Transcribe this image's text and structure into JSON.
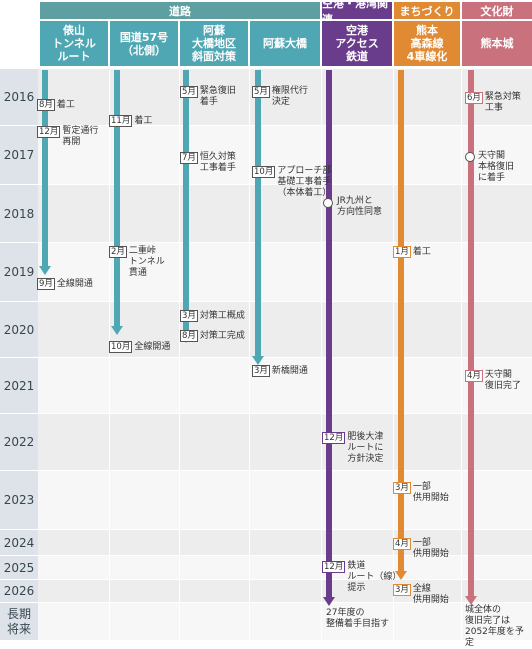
{
  "categories": [
    {
      "label": "道路"
    },
    {
      "label": "空港・港湾関連"
    },
    {
      "label": "まちづくり"
    },
    {
      "label": "文化財"
    }
  ],
  "columns": [
    {
      "lines": [
        "俵山",
        "トンネル",
        "ルート"
      ]
    },
    {
      "lines": [
        "国道57号",
        "（北側）"
      ]
    },
    {
      "lines": [
        "阿蘇",
        "大橋地区",
        "斜面対策"
      ]
    },
    {
      "lines": [
        "阿蘇大橋"
      ]
    },
    {
      "lines": [
        "空港",
        "アクセス",
        "鉄道"
      ]
    },
    {
      "lines": [
        "熊本",
        "高森線",
        "4車線化"
      ]
    },
    {
      "lines": [
        "熊本城"
      ]
    }
  ],
  "years": [
    "2016",
    "2017",
    "2018",
    "2019",
    "2020",
    "2021",
    "2022",
    "2023",
    "2024",
    "2025",
    "2026"
  ],
  "long_term_label": [
    "長期",
    "将来"
  ],
  "colors": {
    "road_cat": "#5e9fa2",
    "road_col": "#4fa7b3",
    "airport": "#6a3c8c",
    "town": "#e08a33",
    "culture": "#c9727e",
    "stripe_a": "#ededed",
    "stripe_b": "#f7f7f7",
    "year_cell": "#dde3e8"
  },
  "events": {
    "tunnel": [
      {
        "month": "8月",
        "text": "着工"
      },
      {
        "month": "12月",
        "text": "暫定通行\n再開"
      },
      {
        "month": "9月",
        "text": "全線開通"
      }
    ],
    "route57": [
      {
        "month": "11月",
        "text": "着工"
      },
      {
        "month": "2月",
        "text": "二重峠\nトンネル\n貫通"
      },
      {
        "month": "10月",
        "text": "全線開通"
      }
    ],
    "slope": [
      {
        "month": "5月",
        "text": "緊急復旧\n着手"
      },
      {
        "month": "7月",
        "text": "恒久対策\n工事着手"
      },
      {
        "month": "3月",
        "text": "対策工概成"
      },
      {
        "month": "8月",
        "text": "対策工完成"
      }
    ],
    "bridge": [
      {
        "month": "5月",
        "text": "権限代行\n決定"
      },
      {
        "month": "10月",
        "text": "アプローチ部\n基礎工事着手\n（本体着工）"
      },
      {
        "month": "3月",
        "text": "新橋開通"
      }
    ],
    "rail": [
      {
        "text": "JR九州と\n方向性同意"
      },
      {
        "month": "12月",
        "text": "肥後大津\nルートに\n方針決定"
      },
      {
        "month": "12月",
        "text": "鉄道\nルート（線）\n提示"
      },
      {
        "text": "27年度の\n整備着手目指す"
      }
    ],
    "road4": [
      {
        "month": "1月",
        "text": "着工"
      },
      {
        "month": "3月",
        "text": "一部\n供用開始"
      },
      {
        "month": "4月",
        "text": "一部\n供用開始"
      },
      {
        "month": "3月",
        "text": "全線\n供用開始"
      }
    ],
    "castle": [
      {
        "month": "6月",
        "text": "緊急対策\n工事"
      },
      {
        "text": "天守閣\n本格復旧\nに着手"
      },
      {
        "month": "4月",
        "text": "天守閣\n復旧完了"
      },
      {
        "text": "城全体の\n復旧完了は\n2052年度を予定"
      }
    ]
  }
}
